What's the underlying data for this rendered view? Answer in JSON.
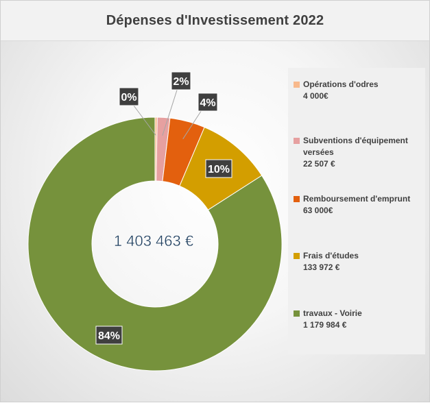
{
  "chart_data": {
    "type": "pie",
    "style": "donut",
    "title": "Dépenses d'Investissement 2022",
    "center_text": "1 403 463 €",
    "categories": [
      "Opérations d'odres",
      "Subventions d'équipement versées",
      "Remboursement d'emprunt",
      "Frais d'études",
      "travaux - Voirie"
    ],
    "values": [
      4000,
      22507,
      63000,
      133972,
      1179984
    ],
    "value_labels": [
      "4 000€",
      "22 507 €",
      "63 000€",
      "133 972 €",
      "1 179 984 €"
    ],
    "percent_labels": [
      "0%",
      "2%",
      "4%",
      "10%",
      "84%"
    ],
    "colors": [
      "#f8b98c",
      "#e6a0a0",
      "#e3600e",
      "#d39e00",
      "#76923c"
    ],
    "legend_position": "right"
  }
}
